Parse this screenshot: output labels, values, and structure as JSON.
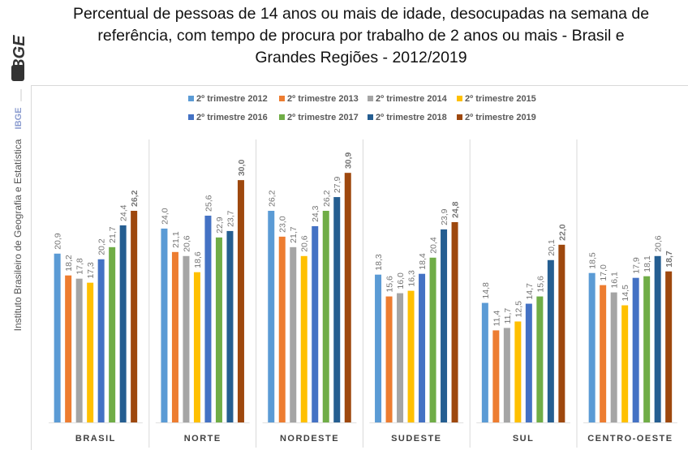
{
  "branding": {
    "logo_text": "IBGE",
    "side_short": "IBGE",
    "side_full": "Instituto Brasileiro de Geografia e Estatística"
  },
  "chart_data": {
    "type": "bar",
    "title": "Percentual de pessoas de 14 anos ou mais de idade, desocupadas na semana de referência, com tempo de procura por trabalho de 2 anos ou mais - Brasil e Grandes Regiões - 2012/2019",
    "title_lines": [
      "Percentual de pessoas de 14 anos ou mais de idade, desocupadas na semana de",
      "referência, com tempo de procura por trabalho de 2 anos ou mais - Brasil e",
      "Grandes Regiões - 2012/2019"
    ],
    "categories": [
      "BRASIL",
      "NORTE",
      "NORDESTE",
      "SUDESTE",
      "SUL",
      "CENTRO-OESTE"
    ],
    "legend_position": "top",
    "grid": false,
    "ylim": [
      0,
      32
    ],
    "series": [
      {
        "name": "2º trimestre 2012",
        "color": "#5B9BD5",
        "values": [
          20.9,
          24.0,
          26.2,
          18.3,
          14.8,
          18.5
        ]
      },
      {
        "name": "2º trimestre 2013",
        "color": "#ED7D31",
        "values": [
          18.2,
          21.1,
          23.0,
          15.6,
          11.4,
          17.0
        ]
      },
      {
        "name": "2º trimestre 2014",
        "color": "#A5A5A5",
        "values": [
          17.8,
          20.6,
          21.7,
          16.0,
          11.7,
          16.1
        ]
      },
      {
        "name": "2º trimestre 2015",
        "color": "#FFC000",
        "values": [
          17.3,
          18.6,
          20.6,
          16.3,
          12.5,
          14.5
        ]
      },
      {
        "name": "2º trimestre 2016",
        "color": "#4472C4",
        "values": [
          20.2,
          25.6,
          24.3,
          18.4,
          14.7,
          17.9
        ]
      },
      {
        "name": "2º trimestre 2017",
        "color": "#70AD47",
        "values": [
          21.7,
          22.9,
          26.2,
          20.4,
          15.6,
          18.1
        ]
      },
      {
        "name": "2º trimestre 2018",
        "color": "#255E91",
        "values": [
          24.4,
          23.7,
          27.9,
          23.9,
          20.1,
          20.6
        ]
      },
      {
        "name": "2º trimestre 2019",
        "color": "#9E480E",
        "values": [
          26.2,
          30.0,
          30.9,
          24.8,
          22.0,
          18.7
        ]
      }
    ]
  }
}
